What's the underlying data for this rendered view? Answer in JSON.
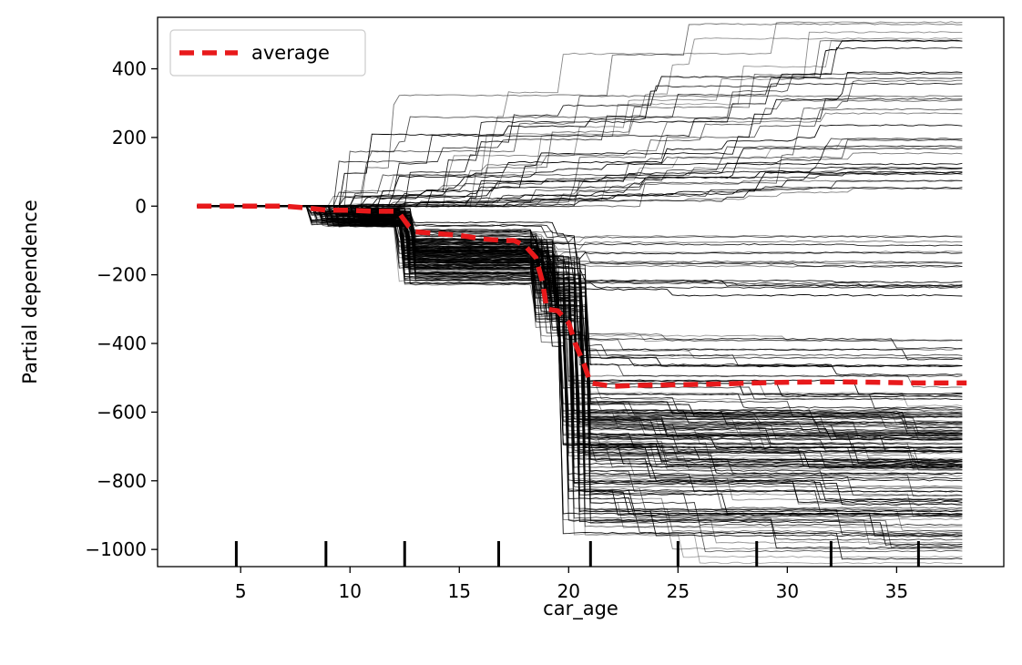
{
  "chart_data": {
    "type": "line",
    "title": "",
    "xlabel": "car_age",
    "ylabel": "Partial dependence",
    "xlim": [
      1.2,
      39.9
    ],
    "ylim": [
      -1050,
      550
    ],
    "xticks": [
      5,
      10,
      15,
      20,
      25,
      30,
      35
    ],
    "yticks": [
      -1000,
      -800,
      -600,
      -400,
      -200,
      0,
      200,
      400
    ],
    "xtick_labels": [
      "5",
      "10",
      "15",
      "20",
      "25",
      "30",
      "35"
    ],
    "ytick_labels": [
      "−1000",
      "−800",
      "−600",
      "−400",
      "−200",
      "0",
      "200",
      "400"
    ],
    "grid": false,
    "legend": {
      "position": "upper-left",
      "entries": [
        "average"
      ]
    },
    "colors": {
      "average": "#e8191b",
      "ice": "#000000"
    },
    "rug": [
      4.8,
      8.9,
      12.5,
      16.8,
      21.0,
      25.0,
      28.6,
      32.0,
      36.0
    ],
    "average": {
      "name": "average",
      "x": [
        3.0,
        5.0,
        7.0,
        8.0,
        9.0,
        10.0,
        11.0,
        12.0,
        12.3,
        12.7,
        13.0,
        14.0,
        15.0,
        16.0,
        17.0,
        17.5,
        18.0,
        18.5,
        18.8,
        19.0,
        19.5,
        20.0,
        20.3,
        20.7,
        21.0,
        22.0,
        23.0,
        25.0,
        27.0,
        28.5,
        30.0,
        32.0,
        34.0,
        36.0,
        38.2
      ],
      "y": [
        0,
        0,
        0,
        -5,
        -12,
        -12,
        -15,
        -15,
        -25,
        -60,
        -75,
        -80,
        -85,
        -95,
        -100,
        -100,
        -115,
        -150,
        -220,
        -300,
        -305,
        -340,
        -400,
        -460,
        -515,
        -525,
        -522,
        -520,
        -518,
        -515,
        -513,
        -512,
        -513,
        -515,
        -515
      ]
    }
  }
}
